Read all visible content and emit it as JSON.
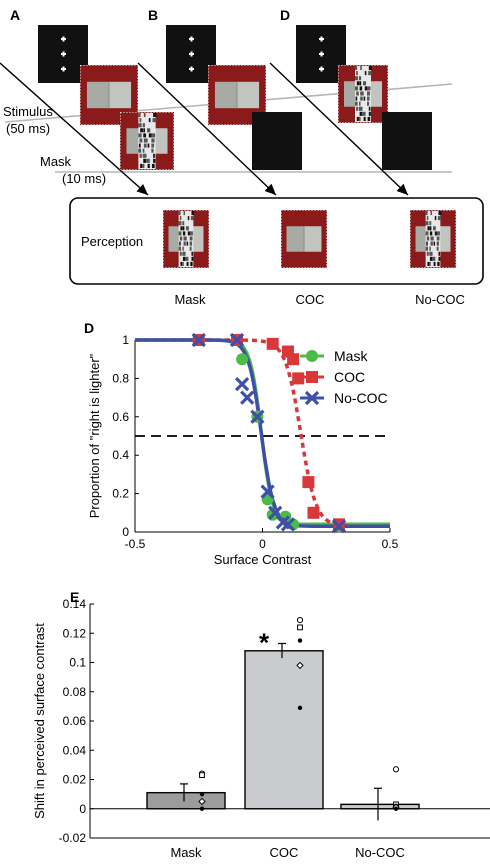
{
  "panel_a": {
    "letters": [
      "A",
      "B",
      "D"
    ],
    "stimulus_label": "Stimulus",
    "stimulus_duration": "(50 ms)",
    "mask_label": "Mask",
    "mask_duration": "(10 ms)",
    "perception_label": "Perception",
    "condition_labels": [
      "Mask",
      "COC",
      "No-COC"
    ]
  },
  "colors": {
    "mask": "#4cbb47",
    "coc": "#d9383a",
    "nococ": "#3f4fa8",
    "bar_fill": "#c9cbce",
    "bar_dark": "#9a9c9e",
    "frame_red": "#8b1a1a"
  },
  "chart_data": [
    {
      "type": "line",
      "panel_letter": "D",
      "xlabel": "Surface Contrast",
      "ylabel": "Proportion of  \"right is lighter\"",
      "xlim": [
        -0.5,
        0.5
      ],
      "ylim": [
        0,
        1
      ],
      "xticks": [
        "-0.5",
        "0",
        "0.5"
      ],
      "yticks": [
        "0",
        "0.2",
        "0.4",
        "0.6",
        "0.8",
        "1"
      ],
      "reference_line_y": 0.5,
      "legend_position": "top-right",
      "series": [
        {
          "name": "Mask",
          "marker": "circle",
          "x": [
            -0.25,
            -0.1,
            -0.08,
            -0.02,
            0.02,
            0.04,
            0.09,
            0.12,
            0.3
          ],
          "y": [
            1.0,
            1.0,
            0.9,
            0.6,
            0.17,
            0.09,
            0.08,
            0.04,
            0.03
          ]
        },
        {
          "name": "COC",
          "marker": "square",
          "x": [
            -0.25,
            -0.1,
            0.04,
            0.1,
            0.12,
            0.14,
            0.18,
            0.2,
            0.3
          ],
          "y": [
            1.0,
            1.0,
            0.98,
            0.94,
            0.9,
            0.8,
            0.26,
            0.1,
            0.04
          ]
        },
        {
          "name": "No-COC",
          "marker": "x",
          "x": [
            -0.25,
            -0.1,
            -0.08,
            -0.06,
            -0.02,
            0.02,
            0.05,
            0.08,
            0.1,
            0.3
          ],
          "y": [
            1.0,
            1.0,
            0.77,
            0.7,
            0.6,
            0.21,
            0.1,
            0.05,
            0.04,
            0.03
          ]
        }
      ]
    },
    {
      "type": "bar",
      "panel_letter": "E",
      "ylabel": "Shift in perceived surface contrast",
      "categories": [
        "Mask",
        "COC",
        "No-COC"
      ],
      "values": [
        0.011,
        0.108,
        0.003
      ],
      "errors": [
        0.006,
        0.005,
        0.011
      ],
      "ylim": [
        -0.02,
        0.14
      ],
      "yticks": [
        "-0.02",
        "0",
        "0.02",
        "0.04",
        "0.06",
        "0.08",
        "0.1",
        "0.12",
        "0.14"
      ],
      "significance_marker": "*",
      "significant_category": "COC",
      "subjects": [
        {
          "category": "Mask",
          "points": [
            0.024,
            0.023,
            0.01,
            0.005,
            0.0
          ]
        },
        {
          "category": "COC",
          "points": [
            0.129,
            0.124,
            0.115,
            0.098,
            0.069
          ]
        },
        {
          "category": "No-COC",
          "points": [
            0.027,
            0.003,
            0.002,
            0.001,
            0.0
          ]
        }
      ]
    }
  ]
}
